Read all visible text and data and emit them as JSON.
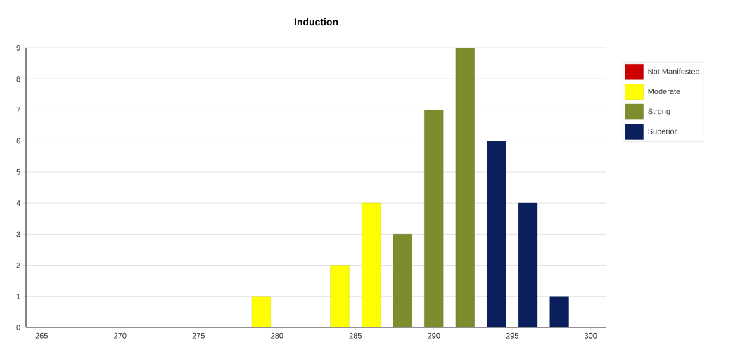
{
  "chart_data": {
    "type": "bar",
    "title": "Induction",
    "xlim": [
      264,
      301
    ],
    "xticks": [
      265,
      270,
      275,
      280,
      285,
      290,
      295,
      300
    ],
    "ylim": [
      0,
      9
    ],
    "yticks": [
      0,
      1,
      2,
      3,
      4,
      5,
      6,
      7,
      8,
      9
    ],
    "grid": "y",
    "legend": "top right",
    "series": [
      {
        "name": "Not Manifested",
        "color": "#cc0000"
      },
      {
        "name": "Moderate",
        "color": "#ffff00",
        "x": [
          279,
          284,
          286
        ],
        "values": [
          1,
          2,
          4
        ]
      },
      {
        "name": "Strong",
        "color": "#7f8c2e",
        "x": [
          288,
          290,
          292
        ],
        "values": [
          3,
          7,
          9
        ]
      },
      {
        "name": "Superior",
        "color": "#0a1f5c",
        "x": [
          294,
          296,
          298
        ],
        "values": [
          6,
          4,
          1
        ]
      }
    ]
  }
}
